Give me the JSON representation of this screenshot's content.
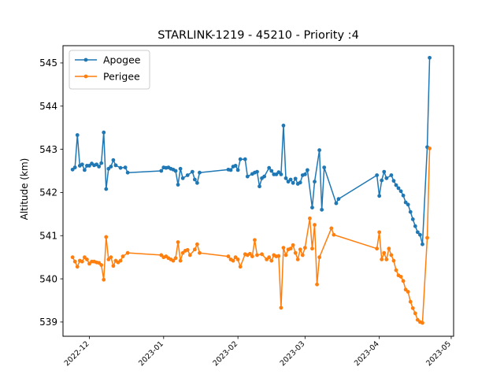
{
  "chart_data": {
    "type": "line",
    "title": "STARLINK-1219 - 45210 - Priority :4",
    "xlabel": "",
    "ylabel": "Altitude (km)",
    "xlim": [
      "2022-11-20",
      "2023-05-02"
    ],
    "ylim": [
      538.67,
      545.4
    ],
    "x_ticks": [
      "2022-12",
      "2023-01",
      "2023-02",
      "2023-03",
      "2023-04",
      "2023-05"
    ],
    "y_ticks": [
      539,
      540,
      541,
      542,
      543,
      544,
      545
    ],
    "grid": false,
    "legend": {
      "position": "upper-left"
    },
    "series": [
      {
        "name": "Apogee",
        "color": "#1f77b4",
        "points": [
          [
            "2022-11-24",
            542.53
          ],
          [
            "2022-11-25",
            542.58
          ],
          [
            "2022-11-26",
            543.33
          ],
          [
            "2022-11-27",
            542.62
          ],
          [
            "2022-11-28",
            542.65
          ],
          [
            "2022-11-29",
            542.52
          ],
          [
            "2022-11-30",
            542.62
          ],
          [
            "2022-12-01",
            542.62
          ],
          [
            "2022-12-02",
            542.67
          ],
          [
            "2022-12-03",
            542.63
          ],
          [
            "2022-12-04",
            542.65
          ],
          [
            "2022-12-05",
            542.6
          ],
          [
            "2022-12-06",
            542.68
          ],
          [
            "2022-12-07",
            543.39
          ],
          [
            "2022-12-08",
            542.08
          ],
          [
            "2022-12-09",
            542.55
          ],
          [
            "2022-12-10",
            542.6
          ],
          [
            "2022-12-11",
            542.75
          ],
          [
            "2022-12-12",
            542.63
          ],
          [
            "2022-12-14",
            542.57
          ],
          [
            "2022-12-16",
            542.58
          ],
          [
            "2022-12-17",
            542.46
          ],
          [
            "2022-12-31",
            542.5
          ],
          [
            "2023-01-01",
            542.58
          ],
          [
            "2023-01-02",
            542.57
          ],
          [
            "2023-01-03",
            542.58
          ],
          [
            "2023-01-04",
            542.55
          ],
          [
            "2023-01-05",
            542.53
          ],
          [
            "2023-01-06",
            542.5
          ],
          [
            "2023-01-07",
            542.18
          ],
          [
            "2023-01-08",
            542.55
          ],
          [
            "2023-01-09",
            542.33
          ],
          [
            "2023-01-11",
            542.4
          ],
          [
            "2023-01-13",
            542.48
          ],
          [
            "2023-01-14",
            542.3
          ],
          [
            "2023-01-15",
            542.22
          ],
          [
            "2023-01-16",
            542.46
          ],
          [
            "2023-01-28",
            542.53
          ],
          [
            "2023-01-29",
            542.52
          ],
          [
            "2023-01-30",
            542.6
          ],
          [
            "2023-01-31",
            542.62
          ],
          [
            "2023-02-01",
            542.52
          ],
          [
            "2023-02-02",
            542.77
          ],
          [
            "2023-02-04",
            542.77
          ],
          [
            "2023-02-05",
            542.37
          ],
          [
            "2023-02-07",
            542.43
          ],
          [
            "2023-02-08",
            542.46
          ],
          [
            "2023-02-09",
            542.48
          ],
          [
            "2023-02-10",
            542.14
          ],
          [
            "2023-02-11",
            542.33
          ],
          [
            "2023-02-12",
            542.37
          ],
          [
            "2023-02-14",
            542.57
          ],
          [
            "2023-02-15",
            542.5
          ],
          [
            "2023-02-16",
            542.42
          ],
          [
            "2023-02-17",
            542.42
          ],
          [
            "2023-02-18",
            542.47
          ],
          [
            "2023-02-19",
            542.42
          ],
          [
            "2023-02-20",
            543.55
          ],
          [
            "2023-02-21",
            542.33
          ],
          [
            "2023-02-22",
            542.25
          ],
          [
            "2023-02-23",
            542.3
          ],
          [
            "2023-02-24",
            542.22
          ],
          [
            "2023-02-25",
            542.32
          ],
          [
            "2023-02-26",
            542.2
          ],
          [
            "2023-02-27",
            542.23
          ],
          [
            "2023-02-28",
            542.4
          ],
          [
            "2023-03-01",
            542.42
          ],
          [
            "2023-03-02",
            542.52
          ],
          [
            "2023-03-04",
            541.65
          ],
          [
            "2023-03-05",
            542.25
          ],
          [
            "2023-03-07",
            542.98
          ],
          [
            "2023-03-08",
            541.6
          ],
          [
            "2023-03-09",
            542.58
          ],
          [
            "2023-03-14",
            541.75
          ],
          [
            "2023-03-15",
            541.85
          ],
          [
            "2023-03-31",
            542.4
          ],
          [
            "2023-04-01",
            541.92
          ],
          [
            "2023-04-02",
            542.28
          ],
          [
            "2023-04-03",
            542.48
          ],
          [
            "2023-04-04",
            542.33
          ],
          [
            "2023-04-06",
            542.4
          ],
          [
            "2023-04-07",
            542.27
          ],
          [
            "2023-04-08",
            542.17
          ],
          [
            "2023-04-09",
            542.1
          ],
          [
            "2023-04-10",
            542.03
          ],
          [
            "2023-04-11",
            541.93
          ],
          [
            "2023-04-12",
            541.77
          ],
          [
            "2023-04-13",
            541.72
          ],
          [
            "2023-04-14",
            541.55
          ],
          [
            "2023-04-15",
            541.38
          ],
          [
            "2023-04-16",
            541.22
          ],
          [
            "2023-04-17",
            541.08
          ],
          [
            "2023-04-18",
            541.02
          ],
          [
            "2023-04-19",
            540.8
          ],
          [
            "2023-04-21",
            543.05
          ],
          [
            "2023-04-22",
            545.12
          ]
        ]
      },
      {
        "name": "Perigee",
        "color": "#ff7f0e",
        "points": [
          [
            "2022-11-24",
            540.5
          ],
          [
            "2022-11-25",
            540.4
          ],
          [
            "2022-11-26",
            540.28
          ],
          [
            "2022-11-27",
            540.42
          ],
          [
            "2022-11-28",
            540.4
          ],
          [
            "2022-11-29",
            540.5
          ],
          [
            "2022-11-30",
            540.45
          ],
          [
            "2022-12-01",
            540.35
          ],
          [
            "2022-12-02",
            540.4
          ],
          [
            "2022-12-03",
            540.4
          ],
          [
            "2022-12-04",
            540.38
          ],
          [
            "2022-12-05",
            540.37
          ],
          [
            "2022-12-06",
            540.32
          ],
          [
            "2022-12-07",
            539.98
          ],
          [
            "2022-12-08",
            540.97
          ],
          [
            "2022-12-09",
            540.45
          ],
          [
            "2022-12-10",
            540.5
          ],
          [
            "2022-12-11",
            540.3
          ],
          [
            "2022-12-12",
            540.42
          ],
          [
            "2022-12-13",
            540.38
          ],
          [
            "2022-12-14",
            540.42
          ],
          [
            "2022-12-15",
            540.52
          ],
          [
            "2022-12-17",
            540.6
          ],
          [
            "2022-12-31",
            540.55
          ],
          [
            "2023-01-01",
            540.5
          ],
          [
            "2023-01-02",
            540.52
          ],
          [
            "2023-01-03",
            540.48
          ],
          [
            "2023-01-04",
            540.45
          ],
          [
            "2023-01-05",
            540.42
          ],
          [
            "2023-01-06",
            540.48
          ],
          [
            "2023-01-07",
            540.85
          ],
          [
            "2023-01-08",
            540.42
          ],
          [
            "2023-01-09",
            540.6
          ],
          [
            "2023-01-10",
            540.65
          ],
          [
            "2023-01-11",
            540.67
          ],
          [
            "2023-01-12",
            540.55
          ],
          [
            "2023-01-14",
            540.68
          ],
          [
            "2023-01-15",
            540.8
          ],
          [
            "2023-01-16",
            540.6
          ],
          [
            "2023-01-28",
            540.52
          ],
          [
            "2023-01-29",
            540.45
          ],
          [
            "2023-01-30",
            540.42
          ],
          [
            "2023-01-31",
            540.5
          ],
          [
            "2023-02-01",
            540.45
          ],
          [
            "2023-02-02",
            540.28
          ],
          [
            "2023-02-04",
            540.57
          ],
          [
            "2023-02-05",
            540.55
          ],
          [
            "2023-02-06",
            540.58
          ],
          [
            "2023-02-07",
            540.52
          ],
          [
            "2023-02-08",
            540.9
          ],
          [
            "2023-02-09",
            540.55
          ],
          [
            "2023-02-11",
            540.57
          ],
          [
            "2023-02-13",
            540.45
          ],
          [
            "2023-02-14",
            540.5
          ],
          [
            "2023-02-15",
            540.42
          ],
          [
            "2023-02-16",
            540.55
          ],
          [
            "2023-02-17",
            540.52
          ],
          [
            "2023-02-18",
            540.53
          ],
          [
            "2023-02-19",
            539.33
          ],
          [
            "2023-02-20",
            540.72
          ],
          [
            "2023-02-21",
            540.55
          ],
          [
            "2023-02-22",
            540.68
          ],
          [
            "2023-02-23",
            540.7
          ],
          [
            "2023-02-24",
            540.78
          ],
          [
            "2023-02-25",
            540.6
          ],
          [
            "2023-02-26",
            540.45
          ],
          [
            "2023-02-27",
            540.68
          ],
          [
            "2023-02-28",
            540.55
          ],
          [
            "2023-03-01",
            540.72
          ],
          [
            "2023-03-03",
            541.4
          ],
          [
            "2023-03-04",
            540.7
          ],
          [
            "2023-03-05",
            541.25
          ],
          [
            "2023-03-06",
            539.87
          ],
          [
            "2023-03-07",
            540.5
          ],
          [
            "2023-03-12",
            541.17
          ],
          [
            "2023-03-13",
            541.02
          ],
          [
            "2023-03-31",
            540.7
          ],
          [
            "2023-04-01",
            541.08
          ],
          [
            "2023-04-02",
            540.45
          ],
          [
            "2023-04-03",
            540.6
          ],
          [
            "2023-04-04",
            540.45
          ],
          [
            "2023-04-05",
            540.7
          ],
          [
            "2023-04-06",
            540.55
          ],
          [
            "2023-04-07",
            540.42
          ],
          [
            "2023-04-08",
            540.2
          ],
          [
            "2023-04-09",
            540.08
          ],
          [
            "2023-04-10",
            540.05
          ],
          [
            "2023-04-11",
            539.95
          ],
          [
            "2023-04-12",
            539.75
          ],
          [
            "2023-04-13",
            539.7
          ],
          [
            "2023-04-14",
            539.47
          ],
          [
            "2023-04-15",
            539.32
          ],
          [
            "2023-04-16",
            539.2
          ],
          [
            "2023-04-17",
            539.05
          ],
          [
            "2023-04-18",
            539.0
          ],
          [
            "2023-04-19",
            538.98
          ],
          [
            "2023-04-21",
            540.95
          ],
          [
            "2023-04-22",
            543.02
          ]
        ]
      }
    ]
  }
}
